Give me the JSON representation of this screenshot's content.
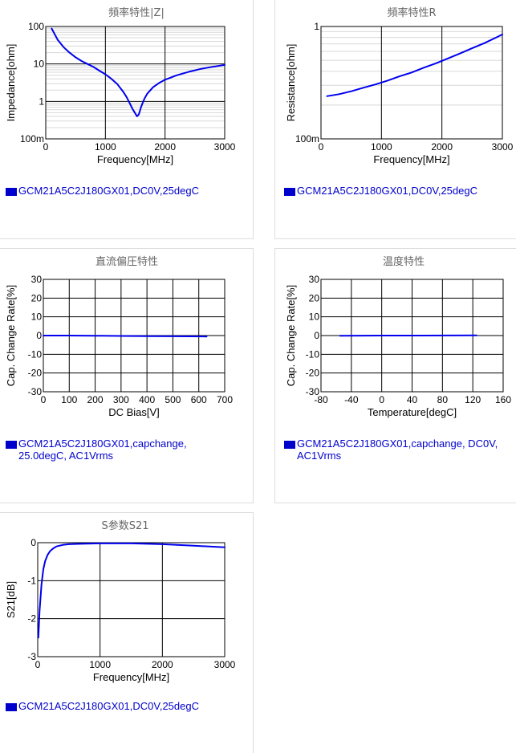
{
  "charts": [
    {
      "type": "line",
      "title": "頻率特性|Z|",
      "xlabel": "Frequency[MHz]",
      "ylabel": "Impedance[ohm]",
      "xlim": [
        0,
        3000
      ],
      "ylim": [
        0.1,
        100
      ],
      "yscale": "log",
      "xticks": [
        0,
        1000,
        2000,
        3000
      ],
      "xtick_labels": [
        "0",
        "1000",
        "2000",
        "3000"
      ],
      "yticks": [
        0.1,
        1,
        10,
        100
      ],
      "ytick_labels": [
        "100m",
        "1",
        "10",
        "100"
      ],
      "grid": true,
      "series": [
        {
          "color": "#0000ee",
          "x": [
            100,
            200,
            300,
            400,
            500,
            600,
            700,
            800,
            900,
            1000,
            1100,
            1200,
            1300,
            1350,
            1400,
            1450,
            1500,
            1530,
            1560,
            1600,
            1650,
            1700,
            1800,
            1900,
            2000,
            2200,
            2400,
            2600,
            2800,
            3000
          ],
          "y": [
            88,
            44,
            28,
            20,
            15,
            12,
            10,
            8.3,
            6.6,
            5.3,
            4.0,
            2.9,
            1.8,
            1.35,
            0.95,
            0.65,
            0.48,
            0.4,
            0.45,
            0.72,
            1.15,
            1.6,
            2.4,
            3.1,
            3.8,
            5.0,
            6.2,
            7.4,
            8.4,
            9.4
          ]
        }
      ],
      "legend": "GCM21A5C2J180GX01,DC0V,25degC"
    },
    {
      "type": "line",
      "title": "頻率特性R",
      "xlabel": "Frequency[MHz]",
      "ylabel": "Resistance[ohm]",
      "xlim": [
        0,
        3000
      ],
      "ylim": [
        0.1,
        1
      ],
      "yscale": "log",
      "xticks": [
        0,
        1000,
        2000,
        3000
      ],
      "xtick_labels": [
        "0",
        "1000",
        "2000",
        "3000"
      ],
      "yticks": [
        0.1,
        1
      ],
      "ytick_labels": [
        "100m",
        "1"
      ],
      "grid": true,
      "series": [
        {
          "color": "#0000ee",
          "x": [
            100,
            300,
            500,
            700,
            900,
            1100,
            1300,
            1500,
            1700,
            1900,
            2100,
            2300,
            2500,
            2700,
            2900,
            3000
          ],
          "y": [
            0.24,
            0.25,
            0.265,
            0.285,
            0.305,
            0.33,
            0.36,
            0.39,
            0.43,
            0.47,
            0.52,
            0.575,
            0.64,
            0.71,
            0.8,
            0.85
          ]
        }
      ],
      "legend": "GCM21A5C2J180GX01,DC0V,25degC"
    },
    {
      "type": "line",
      "title": "直流偏圧特性",
      "xlabel": "DC Bias[V]",
      "ylabel": "Cap. Change Rate[%]",
      "xlim": [
        0,
        700
      ],
      "ylim": [
        -30,
        30
      ],
      "xticks": [
        0,
        100,
        200,
        300,
        400,
        500,
        600,
        700
      ],
      "xtick_labels": [
        "0",
        "100",
        "200",
        "300",
        "400",
        "500",
        "600",
        "700"
      ],
      "yticks": [
        -30,
        -20,
        -10,
        0,
        10,
        20,
        30
      ],
      "ytick_labels": [
        "-30",
        "-20",
        "-10",
        "0",
        "10",
        "20",
        "30"
      ],
      "grid": true,
      "series": [
        {
          "color": "#0000ee",
          "x": [
            0,
            100,
            200,
            300,
            400,
            500,
            630
          ],
          "y": [
            0,
            0,
            -0.1,
            -0.2,
            -0.3,
            -0.4,
            -0.5
          ]
        }
      ],
      "legend": "GCM21A5C2J180GX01,capchange, 25.0degC, AC1Vrms"
    },
    {
      "type": "line",
      "title": "温度特性",
      "xlabel": "Temperature[degC]",
      "ylabel": "Cap. Change Rate[%]",
      "xlim": [
        -80,
        160
      ],
      "ylim": [
        -30,
        30
      ],
      "xticks": [
        -80,
        -40,
        0,
        40,
        80,
        120,
        160
      ],
      "xtick_labels": [
        "-80",
        "-40",
        "0",
        "40",
        "80",
        "120",
        "160"
      ],
      "yticks": [
        -30,
        -20,
        -10,
        0,
        10,
        20,
        30
      ],
      "ytick_labels": [
        "-30",
        "-20",
        "-10",
        "0",
        "10",
        "20",
        "30"
      ],
      "grid": true,
      "series": [
        {
          "color": "#0000ee",
          "x": [
            -55,
            -25,
            0,
            25,
            55,
            85,
            125
          ],
          "y": [
            -0.1,
            -0.05,
            0,
            0,
            0.02,
            0.05,
            0.1
          ]
        }
      ],
      "legend": "GCM21A5C2J180GX01,capchange, DC0V, AC1Vrms"
    },
    {
      "type": "line",
      "title": "S参数S21",
      "xlabel": "Frequency[MHz]",
      "ylabel": "S21[dB]",
      "xlim": [
        0,
        3000
      ],
      "ylim": [
        -3,
        0
      ],
      "xticks": [
        0,
        1000,
        2000,
        3000
      ],
      "xtick_labels": [
        "0",
        "1000",
        "2000",
        "3000"
      ],
      "yticks": [
        -3,
        -2,
        -1,
        0
      ],
      "ytick_labels": [
        "-3",
        "-2",
        "-1",
        "0"
      ],
      "grid": true,
      "series": [
        {
          "color": "#0000ee",
          "x": [
            10,
            30,
            60,
            90,
            120,
            160,
            200,
            250,
            300,
            400,
            500,
            700,
            1000,
            1500,
            2000,
            2500,
            3000
          ],
          "y": [
            -2.5,
            -1.8,
            -1.1,
            -0.7,
            -0.48,
            -0.32,
            -0.22,
            -0.15,
            -0.1,
            -0.06,
            -0.04,
            -0.03,
            -0.02,
            -0.02,
            -0.04,
            -0.08,
            -0.12
          ]
        }
      ],
      "legend": "GCM21A5C2J180GX01,DC0V,25degC"
    }
  ],
  "chart_data": [
    {
      "type": "line",
      "title": "頻率特性|Z|",
      "xlabel": "Frequency[MHz]",
      "ylabel": "Impedance[ohm]"
    },
    {
      "type": "line",
      "title": "頻率特性R",
      "xlabel": "Frequency[MHz]",
      "ylabel": "Resistance[ohm]"
    },
    {
      "type": "line",
      "title": "直流偏圧特性",
      "xlabel": "DC Bias[V]",
      "ylabel": "Cap. Change Rate[%]"
    },
    {
      "type": "line",
      "title": "温度特性",
      "xlabel": "Temperature[degC]",
      "ylabel": "Cap. Change Rate[%]"
    },
    {
      "type": "line",
      "title": "S参数S21",
      "xlabel": "Frequency[MHz]",
      "ylabel": "S21[dB]"
    }
  ]
}
